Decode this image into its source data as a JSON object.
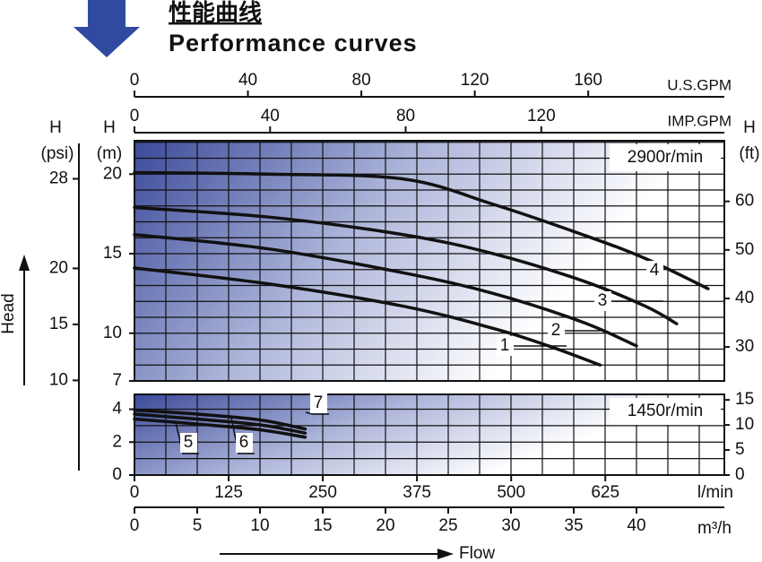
{
  "chart_data": {
    "type": "line",
    "title": "性能曲线",
    "subtitle": "Performance curves",
    "xlabel": "Flow",
    "ylabel": "Head",
    "xunit": "m³/h",
    "xlim": [
      0,
      47
    ],
    "xticks": [
      0,
      5,
      10,
      15,
      20,
      25,
      30,
      35,
      40
    ],
    "grid": true,
    "top_axes": [
      {
        "unit": "U.S.GPM",
        "lim": [
          0,
          208
        ],
        "ticks": [
          0,
          40,
          80,
          120,
          160
        ]
      },
      {
        "unit": "IMP.GPM",
        "lim": [
          0,
          174
        ],
        "ticks": [
          0,
          40,
          80,
          120
        ]
      }
    ],
    "lmin_axis": {
      "unit": "l/min",
      "lim": [
        0,
        783
      ],
      "ticks": [
        0,
        125,
        250,
        375,
        500,
        625
      ]
    },
    "ylabel_m": "H",
    "yunit_m": "(m)",
    "psi_axis": {
      "label": "H",
      "unit": "(psi)",
      "lim": [
        9.95,
        31.4
      ],
      "ticks": [
        10,
        15,
        20,
        28
      ]
    },
    "ft_label": "H",
    "ft_unit": "(ft)",
    "panels": [
      {
        "speed": "2900r/min",
        "ylim": [
          7,
          22.1
        ],
        "yticks": [
          7,
          10,
          15,
          20
        ],
        "ft_lim": [
          23,
          72.5
        ],
        "ft_ticks": [
          30,
          40,
          50,
          60
        ],
        "series": [
          {
            "name": "1",
            "color": "#111111",
            "x": [
              0,
              10.7,
              21.4,
              28.6,
              33,
              37.1
            ],
            "values": [
              14.1,
              13.1,
              11.7,
              10.3,
              9.2,
              8.0
            ]
          },
          {
            "name": "2",
            "color": "#111111",
            "x": [
              0,
              10.7,
              21.4,
              28.6,
              35.7,
              40
            ],
            "values": [
              16.2,
              15.3,
              13.8,
              12.5,
              10.7,
              9.2
            ]
          },
          {
            "name": "3",
            "color": "#111111",
            "x": [
              0,
              10.7,
              21.4,
              28.6,
              35.7,
              40.7,
              43.2
            ],
            "values": [
              17.9,
              17.3,
              16.2,
              15.0,
              13.3,
              11.7,
              10.6
            ]
          },
          {
            "name": "4",
            "color": "#111111",
            "x": [
              0,
              10.7,
              21.4,
              28.6,
              35.7,
              40.7,
              45.7
            ],
            "values": [
              20.1,
              20.0,
              19.7,
              18.1,
              16.2,
              14.7,
              12.8
            ]
          }
        ]
      },
      {
        "speed": "1450r/min",
        "ylim": [
          0,
          4.9
        ],
        "yticks": [
          0,
          2,
          4
        ],
        "ft_lim": [
          0,
          16.1
        ],
        "ft_ticks": [
          0,
          5,
          10,
          15
        ],
        "series": [
          {
            "name": "5",
            "color": "#111111",
            "x": [
              0,
              5,
              10,
              13.6
            ],
            "values": [
              3.4,
              3.1,
              2.75,
              2.3
            ]
          },
          {
            "name": "6",
            "color": "#111111",
            "x": [
              0,
              5,
              10,
              13.6
            ],
            "values": [
              3.7,
              3.4,
              3.05,
              2.55
            ]
          },
          {
            "name": "7",
            "color": "#111111",
            "x": [
              0,
              5,
              10,
              13.6
            ],
            "values": [
              3.95,
              3.7,
              3.35,
              2.8
            ]
          }
        ]
      }
    ]
  }
}
